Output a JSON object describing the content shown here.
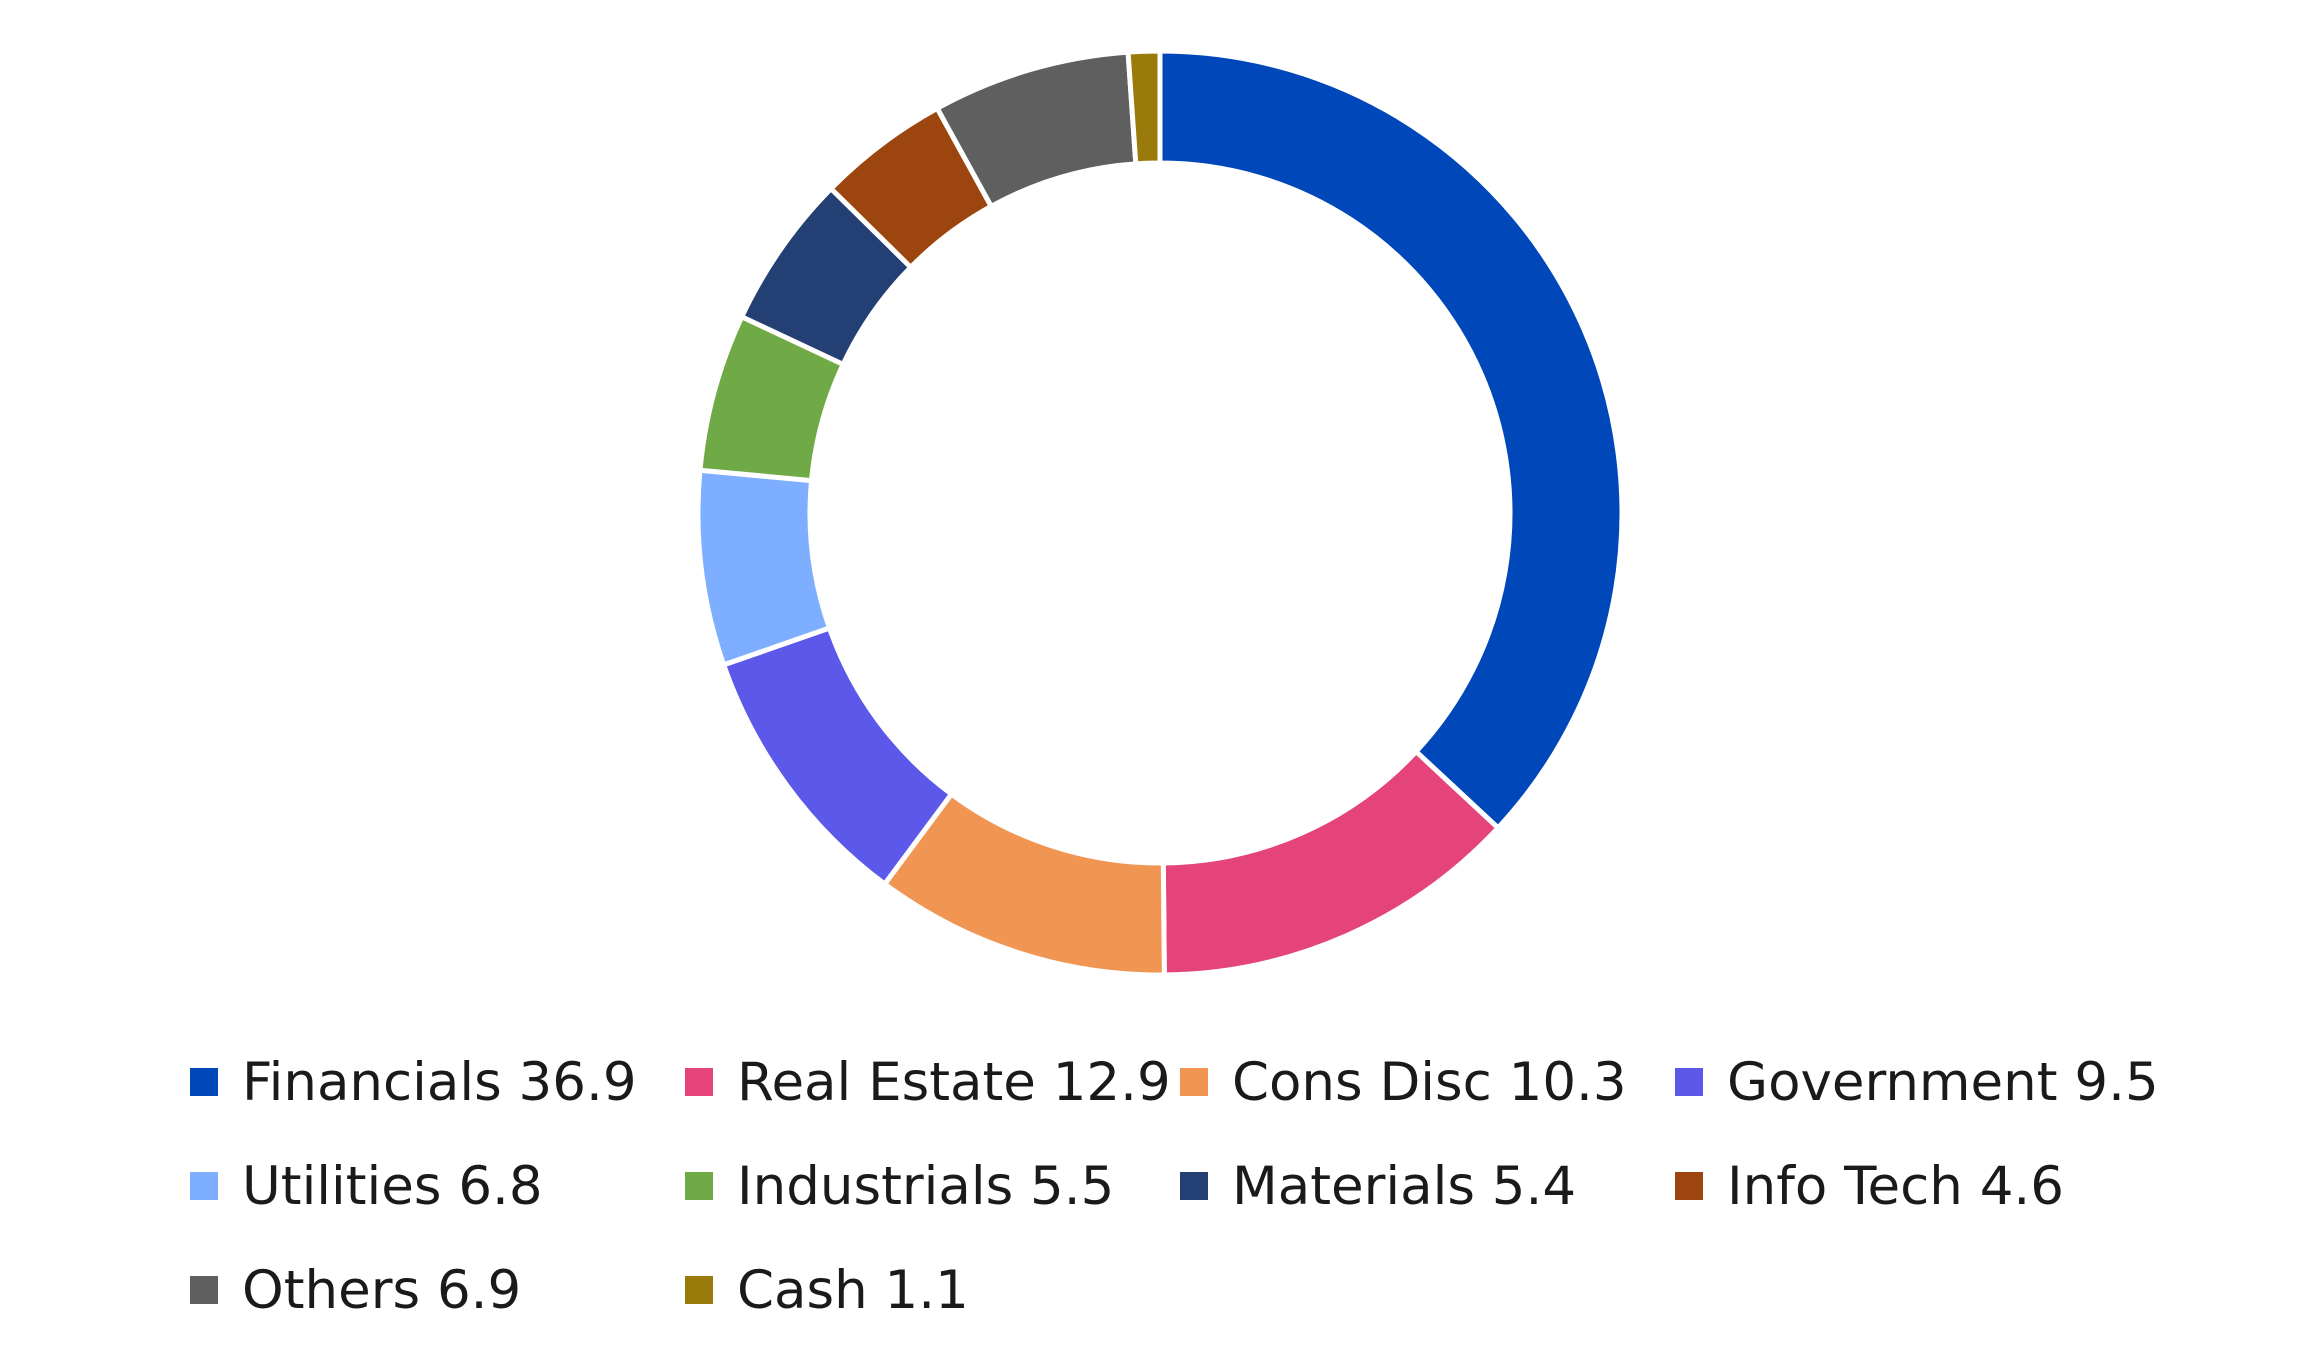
{
  "chart_data": {
    "type": "pie",
    "donut": true,
    "title": "",
    "legend_position": "bottom",
    "series": [
      {
        "name": "Financials",
        "value": 36.9,
        "label": "Financials 36.9",
        "color": "#0047BA"
      },
      {
        "name": "Real Estate",
        "value": 12.9,
        "label": "Real Estate 12.9",
        "color": "#E4447A"
      },
      {
        "name": "Cons Disc",
        "value": 10.3,
        "label": "Cons Disc 10.3",
        "color": "#F09552"
      },
      {
        "name": "Government",
        "value": 9.5,
        "label": "Government 9.5",
        "color": "#5C58EA"
      },
      {
        "name": "Utilities",
        "value": 6.8,
        "label": "Utilities 6.8",
        "color": "#7DAEFF"
      },
      {
        "name": "Industrials",
        "value": 5.5,
        "label": "Industrials 5.5",
        "color": "#6FAA47"
      },
      {
        "name": "Materials",
        "value": 5.4,
        "label": "Materials 5.4",
        "color": "#233F73"
      },
      {
        "name": "Info Tech",
        "value": 4.6,
        "label": "Info Tech 4.6",
        "color": "#9C450F"
      },
      {
        "name": "Others",
        "value": 6.9,
        "label": "Others 6.9",
        "color": "#5F5F5F"
      },
      {
        "name": "Cash",
        "value": 1.1,
        "label": "Cash 1.1",
        "color": "#9A7A0A"
      }
    ]
  }
}
